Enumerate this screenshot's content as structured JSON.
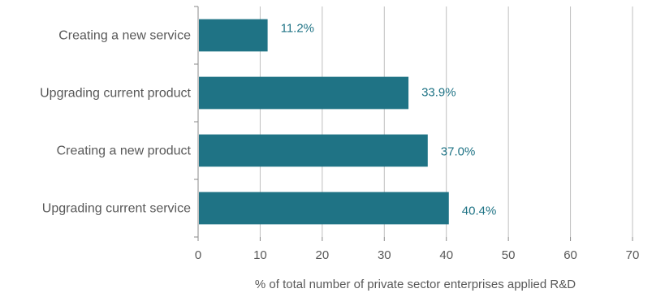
{
  "chart_data": {
    "type": "bar",
    "orientation": "horizontal",
    "categories": [
      "Creating a new service",
      "Upgrading current product",
      "Creating a new product",
      "Upgrading current service"
    ],
    "values": [
      11.2,
      33.9,
      37.0,
      40.4
    ],
    "data_labels": [
      "11.2%",
      "33.9%",
      "37.0%",
      "40.4%"
    ],
    "title": "",
    "xlabel": "% of total number of private sector enterprises applied R&D",
    "ylabel": "",
    "xlim": [
      0,
      70
    ],
    "xticks": [
      0,
      10,
      20,
      30,
      40,
      50,
      60,
      70
    ],
    "grid": "vertical",
    "legend": "none",
    "bar_color": "#1f7385",
    "label_color": "#1f7385"
  }
}
